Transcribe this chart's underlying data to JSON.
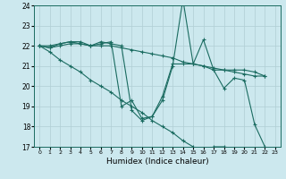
{
  "xlabel": "Humidex (Indice chaleur)",
  "ylabel": "",
  "xlim": [
    -0.5,
    23.5
  ],
  "ylim": [
    17,
    24
  ],
  "yticks": [
    17,
    18,
    19,
    20,
    21,
    22,
    23,
    24
  ],
  "xticks": [
    0,
    1,
    2,
    3,
    4,
    5,
    6,
    7,
    8,
    9,
    10,
    11,
    12,
    13,
    14,
    15,
    16,
    17,
    18,
    19,
    20,
    21,
    22,
    23
  ],
  "bg_color": "#cce8ee",
  "grid_color": "#b0ced4",
  "line_color": "#1a6b60",
  "series": [
    [
      22.0,
      22.0,
      22.1,
      22.2,
      22.1,
      22.0,
      22.2,
      22.1,
      22.0,
      18.8,
      18.3,
      18.5,
      19.3,
      21.0,
      24.3,
      21.1,
      22.3,
      20.8,
      19.9,
      20.4,
      20.3,
      18.1,
      17.0
    ],
    [
      22.0,
      21.9,
      22.1,
      22.2,
      22.2,
      22.0,
      22.1,
      22.2,
      19.0,
      19.3,
      18.4,
      18.5,
      19.5,
      21.1,
      21.1,
      21.1,
      21.0,
      20.8,
      20.8,
      20.8,
      20.8,
      20.7,
      20.5
    ],
    [
      22.0,
      21.9,
      22.0,
      22.1,
      22.1,
      22.0,
      22.0,
      22.0,
      21.9,
      21.8,
      21.7,
      21.6,
      21.5,
      21.4,
      21.2,
      21.1,
      21.0,
      20.9,
      20.8,
      20.7,
      20.6,
      20.5,
      20.5
    ],
    [
      22.0,
      21.7,
      21.3,
      21.0,
      20.7,
      20.3,
      20.0,
      19.7,
      19.3,
      19.0,
      18.7,
      18.3,
      18.0,
      17.7,
      17.3,
      17.0,
      16.7,
      17.0,
      17.0,
      16.9,
      16.8,
      16.7,
      16.7
    ]
  ]
}
